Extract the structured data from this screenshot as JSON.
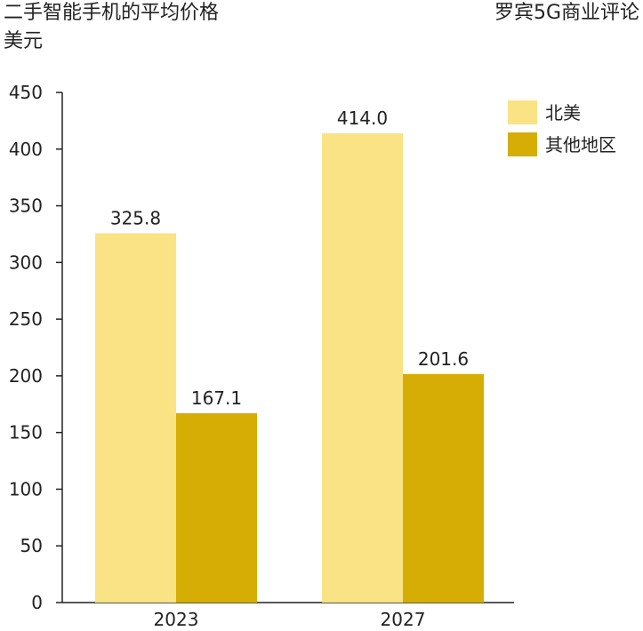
{
  "header": {
    "title": "二手智能手机的平均价格",
    "unit": "美元",
    "source": "罗宾5G商业评论"
  },
  "chart_data": {
    "type": "bar",
    "title": "二手智能手机的平均价格",
    "ylabel": "美元",
    "xlabel": "",
    "categories": [
      "2023",
      "2027"
    ],
    "series": [
      {
        "name": "北美",
        "values": [
          325.8,
          414.0
        ],
        "labels": [
          "325.8",
          "414.0"
        ],
        "color": "#fae385"
      },
      {
        "name": "其他地区",
        "values": [
          167.1,
          201.6
        ],
        "labels": [
          "167.1",
          "201.6"
        ],
        "color": "#d6ad04"
      }
    ],
    "ylim": [
      0,
      450
    ],
    "yticks": [
      0,
      50,
      100,
      150,
      200,
      250,
      300,
      350,
      400,
      450
    ],
    "grid": false,
    "legend_position": "top-right"
  }
}
